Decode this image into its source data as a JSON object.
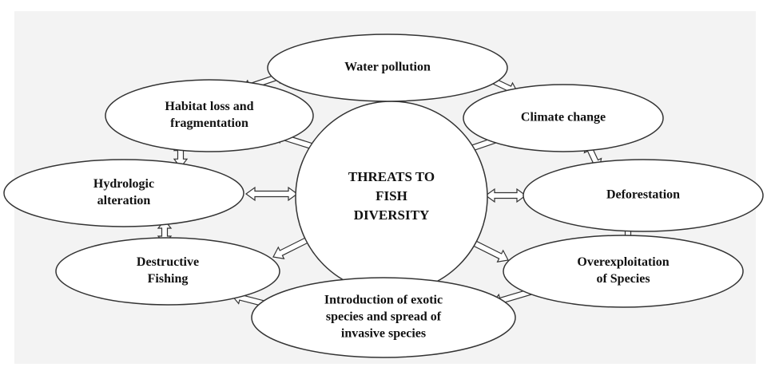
{
  "center": {
    "lines": [
      "THREATS TO",
      "FISH",
      "DIVERSITY"
    ]
  },
  "nodes": [
    {
      "lines": [
        "Water pollution"
      ]
    },
    {
      "lines": [
        "Habitat loss and",
        "fragmentation"
      ]
    },
    {
      "lines": [
        "Climate change"
      ]
    },
    {
      "lines": [
        "Hydrologic",
        "alteration"
      ]
    },
    {
      "lines": [
        "Deforestation"
      ]
    },
    {
      "lines": [
        "Destructive",
        "Fishing"
      ]
    },
    {
      "lines": [
        "Overexploitation",
        "of Species"
      ]
    },
    {
      "lines": [
        "Introduction of exotic",
        "species and spread of",
        "invasive species"
      ]
    }
  ]
}
